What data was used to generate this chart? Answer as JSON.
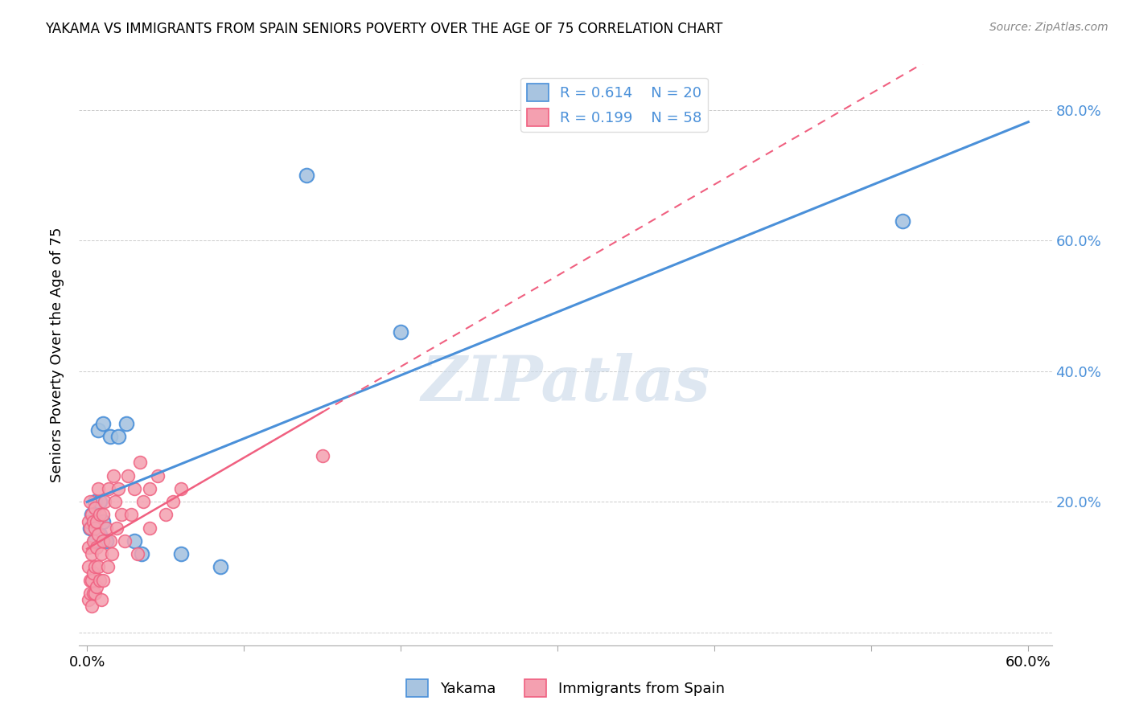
{
  "title": "YAKAMA VS IMMIGRANTS FROM SPAIN SENIORS POVERTY OVER THE AGE OF 75 CORRELATION CHART",
  "source": "Source: ZipAtlas.com",
  "ylabel": "Seniors Poverty Over the Age of 75",
  "xlim": [
    -0.005,
    0.615
  ],
  "ylim": [
    -0.02,
    0.87
  ],
  "xticks": [
    0.0,
    0.1,
    0.2,
    0.3,
    0.4,
    0.5,
    0.6
  ],
  "xticklabels": [
    "0.0%",
    "",
    "",
    "",
    "",
    "",
    "60.0%"
  ],
  "yticks_right": [
    0.0,
    0.2,
    0.4,
    0.6,
    0.8
  ],
  "ytick_right_labels": [
    "",
    "20.0%",
    "40.0%",
    "60.0%",
    "80.0%"
  ],
  "legend_r1": "R = 0.614",
  "legend_n1": "N = 20",
  "legend_r2": "R = 0.199",
  "legend_n2": "N = 58",
  "yakama_color": "#a8c4e0",
  "spain_color": "#f4a0b0",
  "yakama_line_color": "#4a90d9",
  "spain_line_color": "#f06080",
  "watermark": "ZIPatlas",
  "watermark_color": "#c8d8e8",
  "yakama_x": [
    0.002,
    0.003,
    0.005,
    0.005,
    0.007,
    0.008,
    0.008,
    0.01,
    0.01,
    0.012,
    0.015,
    0.02,
    0.025,
    0.03,
    0.035,
    0.06,
    0.085,
    0.14,
    0.2,
    0.52
  ],
  "yakama_y": [
    0.16,
    0.18,
    0.14,
    0.2,
    0.31,
    0.2,
    0.15,
    0.32,
    0.17,
    0.14,
    0.3,
    0.3,
    0.32,
    0.14,
    0.12,
    0.12,
    0.1,
    0.7,
    0.46,
    0.63
  ],
  "spain_x": [
    0.001,
    0.001,
    0.001,
    0.001,
    0.002,
    0.002,
    0.002,
    0.002,
    0.003,
    0.003,
    0.003,
    0.003,
    0.004,
    0.004,
    0.004,
    0.004,
    0.005,
    0.005,
    0.005,
    0.005,
    0.006,
    0.006,
    0.006,
    0.007,
    0.007,
    0.007,
    0.008,
    0.008,
    0.009,
    0.009,
    0.01,
    0.01,
    0.01,
    0.011,
    0.012,
    0.013,
    0.014,
    0.015,
    0.016,
    0.017,
    0.018,
    0.019,
    0.02,
    0.022,
    0.024,
    0.026,
    0.028,
    0.03,
    0.032,
    0.034,
    0.036,
    0.04,
    0.04,
    0.045,
    0.05,
    0.055,
    0.06,
    0.15
  ],
  "spain_y": [
    0.1,
    0.13,
    0.17,
    0.05,
    0.16,
    0.08,
    0.2,
    0.06,
    0.04,
    0.12,
    0.18,
    0.08,
    0.14,
    0.06,
    0.17,
    0.09,
    0.1,
    0.16,
    0.06,
    0.19,
    0.13,
    0.17,
    0.07,
    0.1,
    0.15,
    0.22,
    0.08,
    0.18,
    0.12,
    0.05,
    0.14,
    0.18,
    0.08,
    0.2,
    0.16,
    0.1,
    0.22,
    0.14,
    0.12,
    0.24,
    0.2,
    0.16,
    0.22,
    0.18,
    0.14,
    0.24,
    0.18,
    0.22,
    0.12,
    0.26,
    0.2,
    0.16,
    0.22,
    0.24,
    0.18,
    0.2,
    0.22,
    0.27
  ]
}
